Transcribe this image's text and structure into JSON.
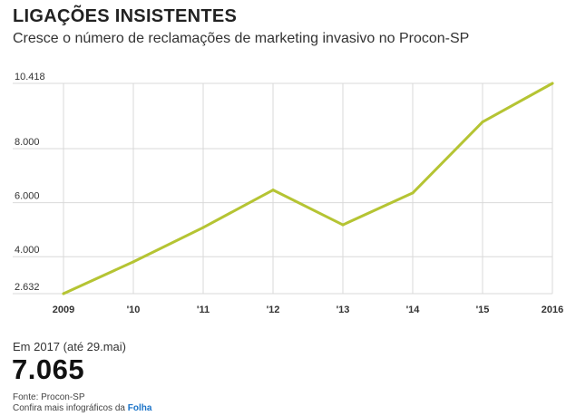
{
  "header": {
    "title": "LIGAÇÕES INSISTENTES",
    "subtitle": "Cresce o número de reclamações de marketing invasivo no Procon-SP"
  },
  "chart_data": {
    "type": "line",
    "categories": [
      "2009",
      "'10",
      "'11",
      "'12",
      "'13",
      "'14",
      "'15",
      "2016"
    ],
    "series": [
      {
        "values": [
          2632,
          3810,
          5080,
          6470,
          5180,
          6360,
          8990,
          10418
        ]
      }
    ],
    "yticks": [
      {
        "value": 2632,
        "label": "2.632"
      },
      {
        "value": 4000,
        "label": "4.000"
      },
      {
        "value": 6000,
        "label": "6.000"
      },
      {
        "value": 8000,
        "label": "8.000"
      },
      {
        "value": 10418,
        "label": "10.418"
      }
    ],
    "ylim": [
      2632,
      10418
    ],
    "grid": true,
    "colors": {
      "line": "#b5c433",
      "grid": "#d9d9d9"
    }
  },
  "annotation": {
    "label": "Em 2017 (até 29.mai)",
    "value": "7.065"
  },
  "footer": {
    "source": "Fonte: Procon-SP",
    "more_prefix": "Confira mais infográficos da ",
    "more_link": "Folha"
  }
}
